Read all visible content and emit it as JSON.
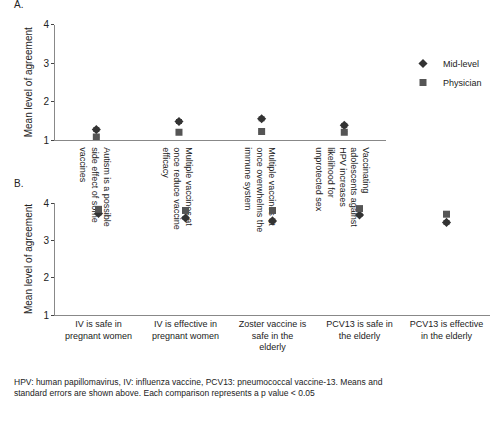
{
  "chart_data": [
    {
      "type": "scatter",
      "title": "A.",
      "ylabel": "Mean level of agreement",
      "categories": [
        "Autism is a possible side effect of some vaccines",
        "Multiple vaccines at once reduce vaccine efficacy",
        "Multiple vaccines at once overwhelms the immune system",
        "Vaccinating adolescents against HPV increases likelihood for unprotected sex"
      ],
      "series": [
        {
          "name": "Mid-level",
          "color": "#333333",
          "marker": "diamond",
          "values": [
            1.27,
            1.48,
            1.55,
            1.38
          ],
          "errors": [
            0.05,
            0.05,
            0.05,
            0.05
          ]
        },
        {
          "name": "Physician",
          "color": "#555555",
          "marker": "square",
          "values": [
            1.08,
            1.2,
            1.22,
            1.2
          ],
          "errors": [
            0.02,
            0.02,
            0.02,
            0.02
          ]
        }
      ],
      "ylim": [
        1,
        4
      ],
      "yticks": [
        1,
        2,
        3,
        4
      ],
      "grid": false,
      "legend": "right"
    },
    {
      "type": "scatter",
      "title": "B.",
      "ylabel": "Mean level of agreement",
      "categories": [
        "IV is safe in pregnant women",
        "IV is effective in pregnant women",
        "Zoster vaccine is safe in the elderly",
        "PCV13 is safe in the elderly",
        "PCV13 is effective in the elderly"
      ],
      "series": [
        {
          "name": "Mid-level",
          "color": "#333333",
          "marker": "diamond",
          "values": [
            3.72,
            3.6,
            3.52,
            3.68,
            3.48
          ],
          "errors": [
            0.04,
            0.04,
            0.05,
            0.04,
            0.05
          ]
        },
        {
          "name": "Physician",
          "color": "#555555",
          "marker": "square",
          "values": [
            3.83,
            3.8,
            3.8,
            3.85,
            3.7
          ],
          "errors": [
            0.02,
            0.02,
            0.02,
            0.02,
            0.02
          ]
        }
      ],
      "ylim": [
        1,
        4
      ],
      "yticks": [
        1,
        2,
        3,
        4
      ],
      "grid": false,
      "annotations": [
        "HPV: human papillomavirus, IV: influenza vaccine, PCV13: pneumococcal vaccine-13. Means and standard errors are shown above. Each comparison represents a p value < 0.05"
      ]
    }
  ]
}
